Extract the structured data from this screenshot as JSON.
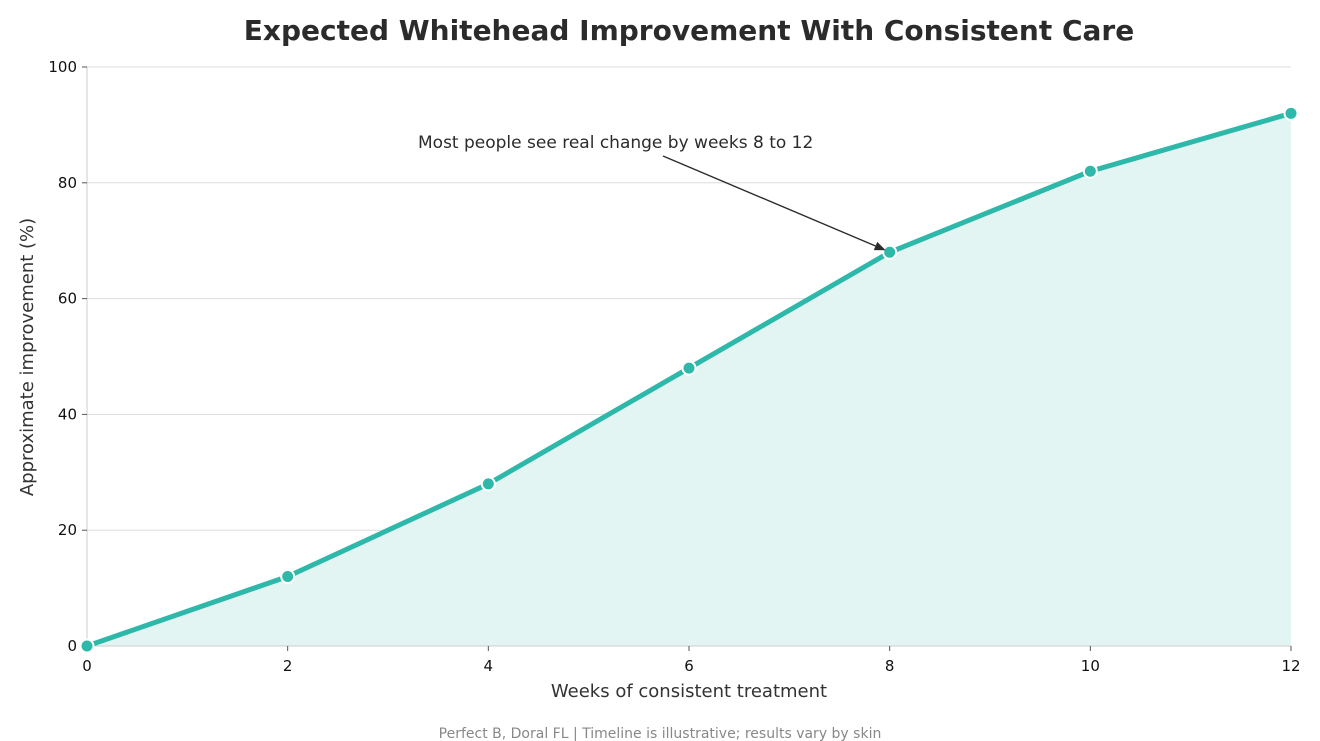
{
  "colors": {
    "line": "#2db8aa",
    "fill": "#e3f5f3",
    "grid": "#dddddd",
    "text": "#2b2b2b",
    "footer": "#888888"
  },
  "chart_data": {
    "type": "line",
    "title": "Expected Whitehead Improvement With Consistent Care",
    "xlabel": "Weeks of consistent treatment",
    "ylabel": "Approximate improvement (%)",
    "xlim": [
      0,
      12
    ],
    "ylim": [
      0,
      100
    ],
    "x_ticks": [
      0,
      2,
      4,
      6,
      8,
      10,
      12
    ],
    "y_ticks": [
      0,
      20,
      40,
      60,
      80,
      100
    ],
    "grid": "horizontal",
    "fill_under_line": true,
    "series": [
      {
        "x": [
          0,
          2,
          4,
          6,
          8,
          10,
          12
        ],
        "values": [
          0,
          12,
          28,
          48,
          68,
          82,
          92
        ]
      }
    ],
    "annotation": {
      "text": "Most people see real change by weeks 8 to 12",
      "target_x": 8,
      "target_y": 68
    },
    "footer": "Perfect B, Doral FL  |  Timeline is illustrative; results vary by skin"
  }
}
